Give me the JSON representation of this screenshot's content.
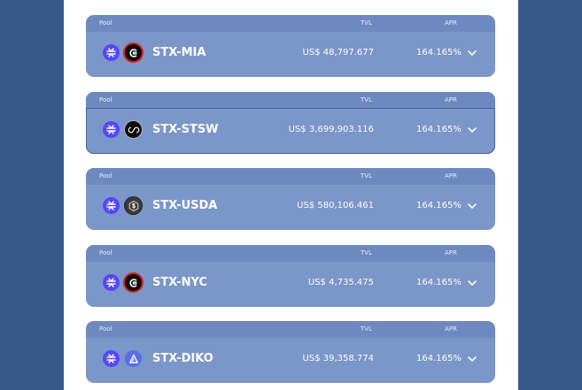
{
  "headers": {
    "pool": "Pool",
    "tvl": "TVL",
    "apr": "APR"
  },
  "pools": [
    {
      "pair": "STX-MIA",
      "tvl": "US$ 48,797.677",
      "apr": "164.165%",
      "token": "miamicoin-icon"
    },
    {
      "pair": "STX-STSW",
      "tvl": "US$ 3,699,903.116",
      "apr": "164.165%",
      "token": "stackswap-icon"
    },
    {
      "pair": "STX-USDA",
      "tvl": "US$ 580,106.461",
      "apr": "164.165%",
      "token": "usda-icon"
    },
    {
      "pair": "STX-NYC",
      "tvl": "US$ 4,735.475",
      "apr": "164.165%",
      "token": "nycitycoin-icon"
    },
    {
      "pair": "STX-DIKO",
      "tvl": "US$ 39,358.774",
      "apr": "164.165%",
      "token": "arkadiko-icon"
    }
  ],
  "colors": {
    "background": "#37598a",
    "card": "#7b96c9",
    "card_header": "#6e89bf",
    "stx": "#5546ff"
  }
}
